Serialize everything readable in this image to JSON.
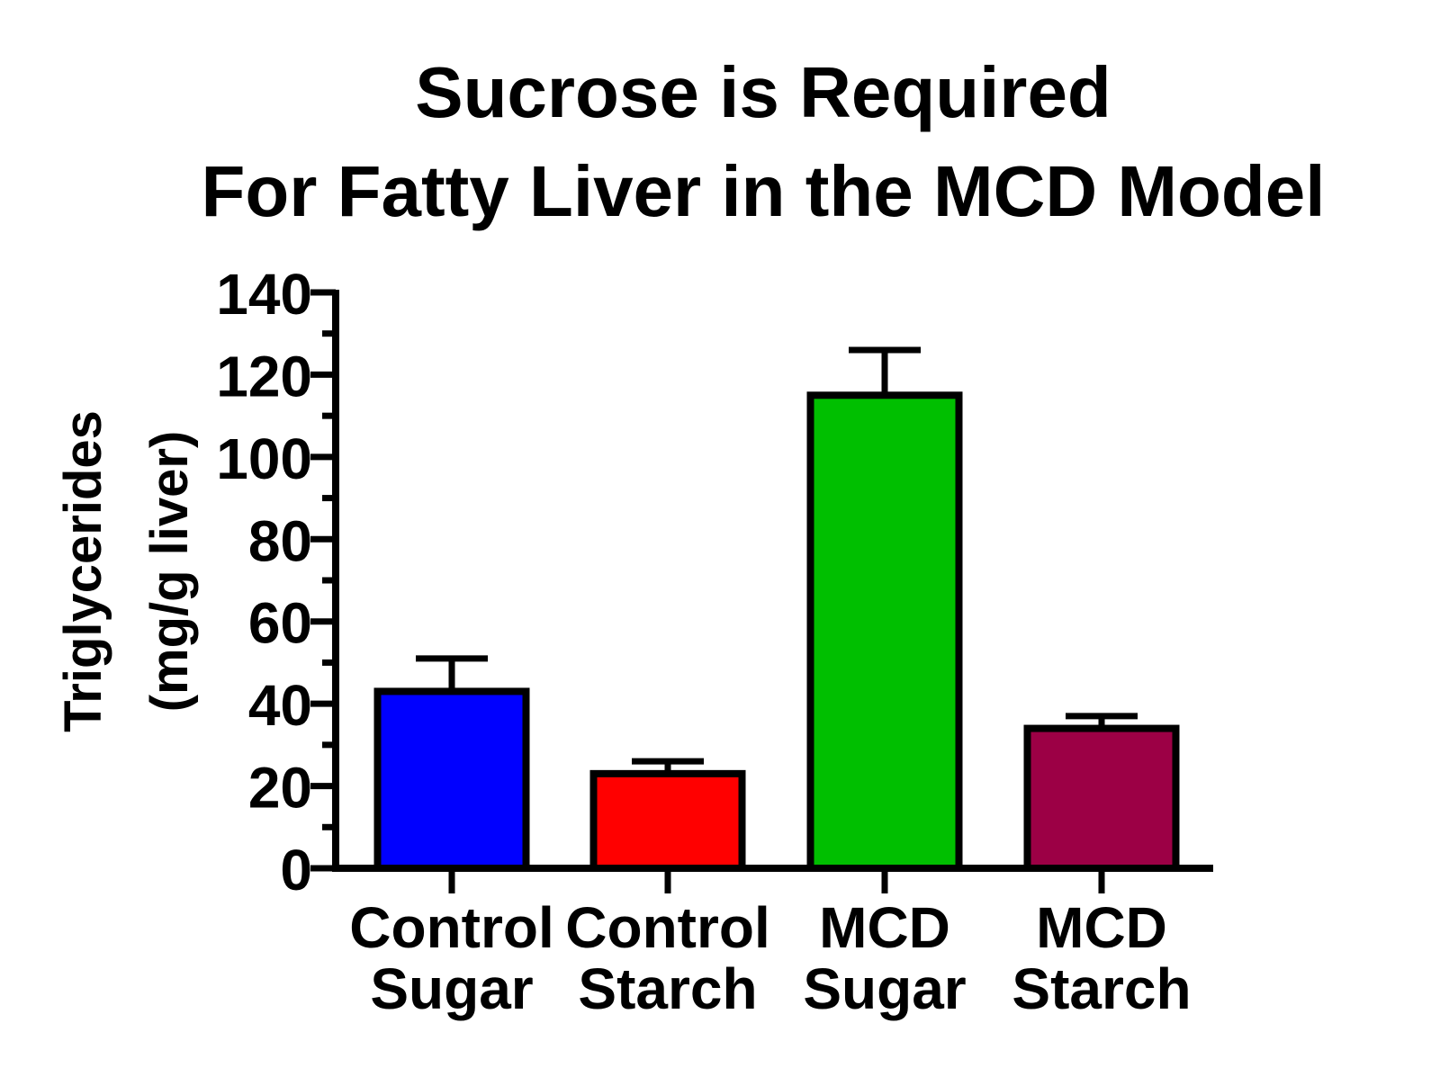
{
  "chart_data": {
    "type": "bar",
    "title_lines": [
      "Sucrose is Required",
      "For Fatty Liver in the MCD Model"
    ],
    "ylabel_lines": [
      "Triglycerides",
      "(mg/g liver)"
    ],
    "categories": [
      [
        "Control",
        "Sugar"
      ],
      [
        "Control",
        "Starch"
      ],
      [
        "MCD",
        "Sugar"
      ],
      [
        "MCD",
        "Starch"
      ]
    ],
    "values": [
      43,
      23,
      115,
      34
    ],
    "errors": [
      8,
      3,
      11,
      3
    ],
    "colors": [
      "#0000ff",
      "#ff0000",
      "#00bf00",
      "#9c0045"
    ],
    "ylim": [
      0,
      140
    ],
    "yticks": [
      0,
      20,
      40,
      60,
      80,
      100,
      120,
      140
    ],
    "minor_step": 10,
    "grid": false,
    "legend": "none"
  }
}
